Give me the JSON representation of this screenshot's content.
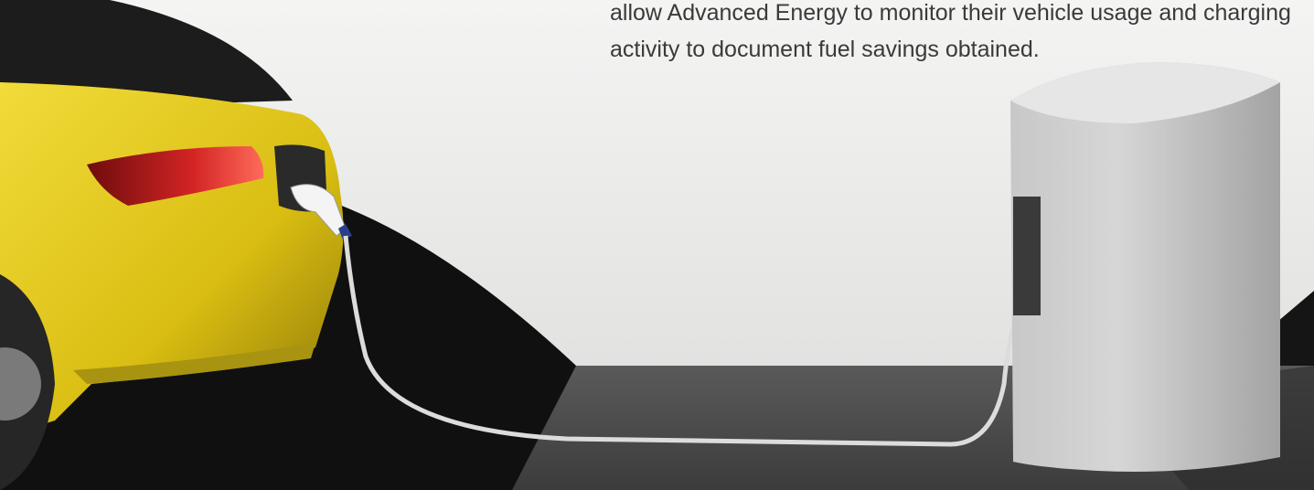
{
  "caption": {
    "lines": [
      "allow Advanced Energy to monitor their vehicle usage and charging",
      "activity to document fuel savings obtained."
    ]
  }
}
